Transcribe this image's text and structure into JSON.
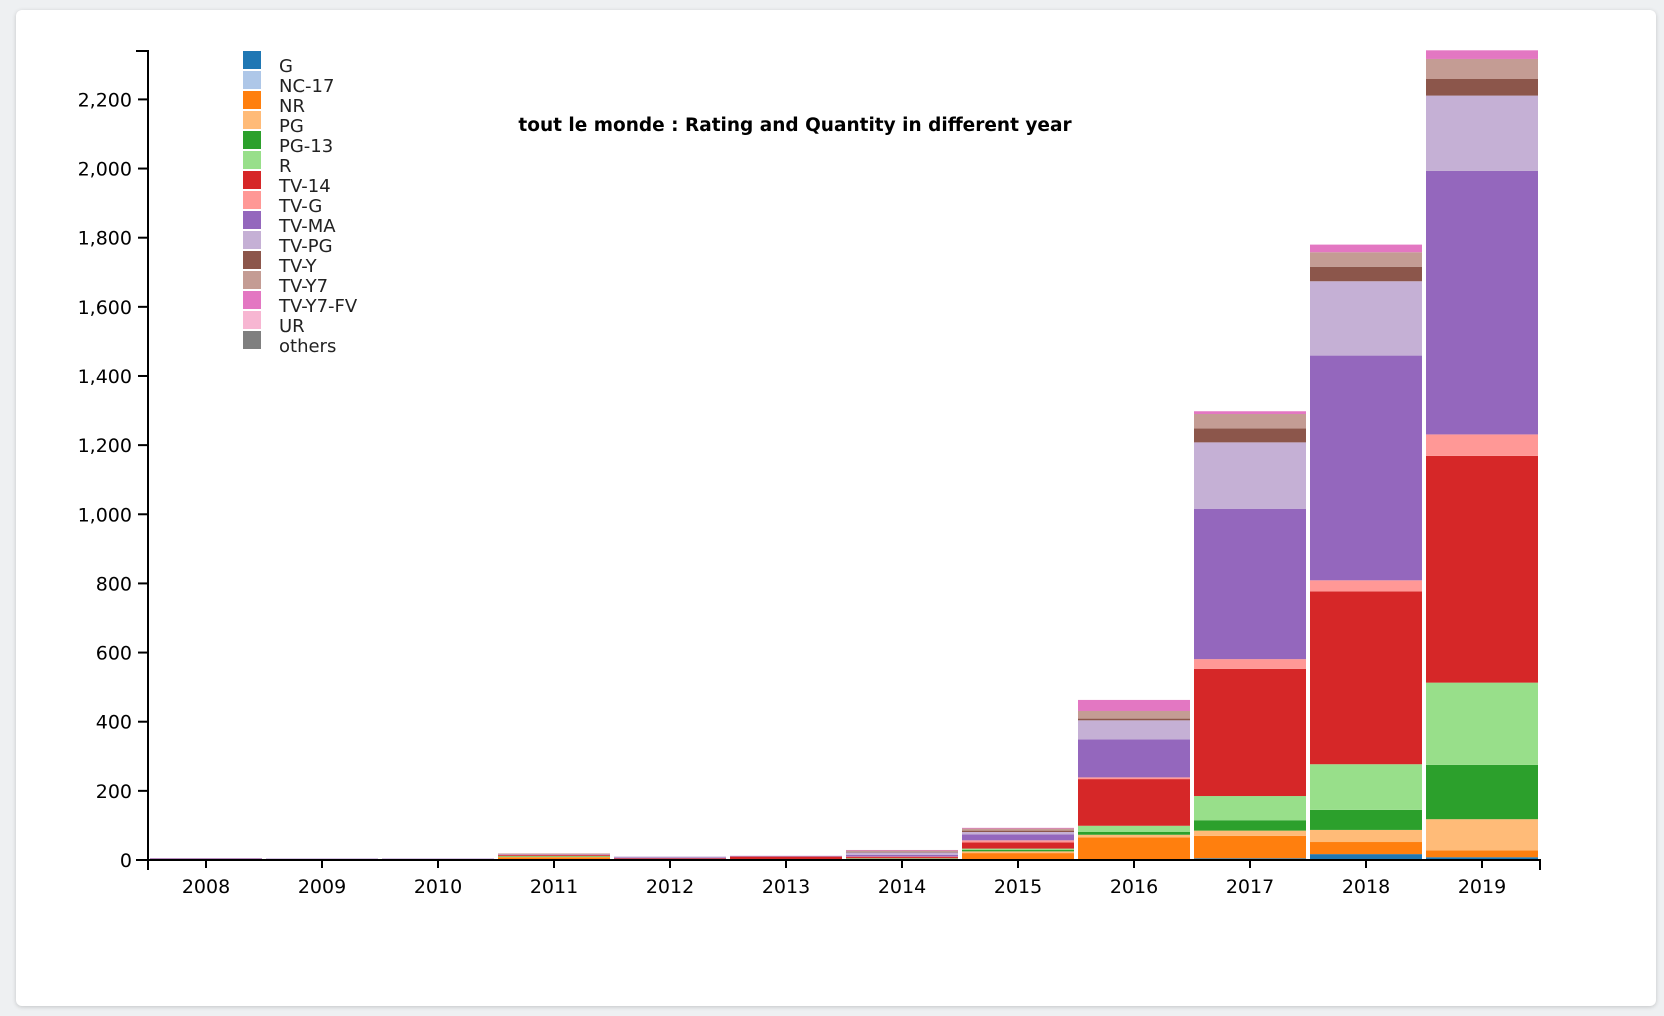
{
  "chart_data": {
    "type": "bar",
    "stacked": true,
    "title": "tout le monde : Rating and Quantity in different year",
    "xlabel": "",
    "ylabel": "",
    "ylim": [
      0,
      2340
    ],
    "yticks": [
      0,
      200,
      400,
      600,
      800,
      1000,
      1200,
      1400,
      1600,
      1800,
      2000,
      2200
    ],
    "ytick_labels": [
      "0",
      "200",
      "400",
      "600",
      "800",
      "1,000",
      "1,200",
      "1,400",
      "1,600",
      "1,800",
      "2,000",
      "2,200"
    ],
    "grid": false,
    "legend_position": "top-left",
    "categories": [
      "2008",
      "2009",
      "2010",
      "2011",
      "2012",
      "2013",
      "2014",
      "2015",
      "2016",
      "2017",
      "2018",
      "2019"
    ],
    "series": [
      {
        "name": "G",
        "color": "#1f77b4",
        "values": [
          0,
          0,
          0,
          0,
          0,
          0,
          0,
          0,
          0,
          5,
          17,
          8
        ]
      },
      {
        "name": "NC-17",
        "color": "#aec7e8",
        "values": [
          0,
          0,
          0,
          0,
          0,
          0,
          0,
          0,
          0,
          0,
          0,
          0
        ]
      },
      {
        "name": "NR",
        "color": "#ff7f0e",
        "values": [
          2,
          2,
          2,
          8,
          2,
          2,
          2,
          20,
          65,
          65,
          35,
          20
        ]
      },
      {
        "name": "PG",
        "color": "#ffbb78",
        "values": [
          1,
          0,
          0,
          2,
          0,
          0,
          1,
          5,
          8,
          15,
          35,
          90
        ]
      },
      {
        "name": "PG-13",
        "color": "#2ca02c",
        "values": [
          0,
          0,
          0,
          1,
          0,
          0,
          1,
          4,
          8,
          30,
          58,
          157
        ]
      },
      {
        "name": "R",
        "color": "#98df8a",
        "values": [
          0,
          0,
          0,
          1,
          0,
          0,
          1,
          4,
          18,
          70,
          132,
          238
        ]
      },
      {
        "name": "TV-14",
        "color": "#d62728",
        "values": [
          1,
          1,
          1,
          3,
          3,
          8,
          4,
          18,
          135,
          368,
          500,
          656
        ]
      },
      {
        "name": "TV-G",
        "color": "#ff9896",
        "values": [
          0,
          0,
          0,
          1,
          0,
          1,
          1,
          6,
          5,
          28,
          32,
          62
        ]
      },
      {
        "name": "TV-MA",
        "color": "#9467bd",
        "values": [
          1,
          1,
          1,
          1,
          2,
          1,
          5,
          17,
          110,
          435,
          650,
          762
        ]
      },
      {
        "name": "TV-PG",
        "color": "#c5b0d5",
        "values": [
          0,
          0,
          0,
          1,
          3,
          0,
          7,
          7,
          55,
          192,
          215,
          218
        ]
      },
      {
        "name": "TV-Y",
        "color": "#8c564b",
        "values": [
          0,
          0,
          0,
          0,
          0,
          0,
          2,
          4,
          5,
          40,
          42,
          48
        ]
      },
      {
        "name": "TV-Y7",
        "color": "#c49c94",
        "values": [
          0,
          0,
          0,
          1,
          0,
          0,
          4,
          6,
          22,
          42,
          42,
          58
        ]
      },
      {
        "name": "TV-Y7-FV",
        "color": "#e377c2",
        "values": [
          0,
          0,
          0,
          0,
          0,
          0,
          1,
          2,
          32,
          8,
          22,
          25
        ]
      },
      {
        "name": "UR",
        "color": "#f7b6d2",
        "values": [
          0,
          0,
          0,
          0,
          0,
          0,
          0,
          0,
          0,
          0,
          0,
          0
        ]
      },
      {
        "name": "others",
        "color": "#7f7f7f",
        "values": [
          0,
          0,
          0,
          0,
          0,
          0,
          0,
          0,
          0,
          0,
          0,
          0
        ]
      }
    ]
  }
}
